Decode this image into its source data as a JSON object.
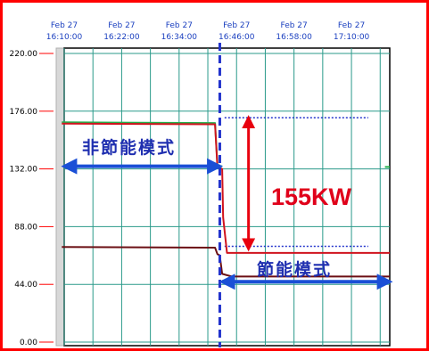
{
  "colors": {
    "frame": "#ff0000",
    "grid": "#2a9a8a",
    "plot_bg": "#ffffff",
    "axis_text_x": "#1a3fbf",
    "divider": "#2233cc",
    "green_series": "#22b14c",
    "red_series": "#d0141e",
    "brown_series": "#6b0f14",
    "ref_dotted": "#2233cc",
    "arrow_red": "#e8000e",
    "arrow_blue": "#1a4fd6",
    "text_blue": "#1f2fb0",
    "text_red": "#e0001a"
  },
  "chart_data": {
    "type": "line",
    "title": "",
    "xlabel": "",
    "ylabel": "",
    "x_unit": "minutes",
    "x_tick_values": [
      0,
      12,
      24,
      36,
      48,
      60
    ],
    "x_ticks": [
      {
        "date": "Feb 27",
        "time": "16:10:00"
      },
      {
        "date": "Feb 27",
        "time": "16:22:00"
      },
      {
        "date": "Feb 27",
        "time": "16:34:00"
      },
      {
        "date": "Feb 27",
        "time": "16:46:00"
      },
      {
        "date": "Feb 27",
        "time": "16:58:00"
      },
      {
        "date": "Feb 27",
        "time": "17:10:00"
      }
    ],
    "xlim": [
      0,
      68
    ],
    "ylim": [
      0,
      220
    ],
    "y_ticks": [
      "0.00",
      "44.00",
      "88.00",
      "132.00",
      "176.00",
      "220.00"
    ],
    "y_tick_values": [
      0,
      44,
      88,
      132,
      176,
      220
    ],
    "grid": true,
    "vertical_divider_x": 32.5,
    "series": [
      {
        "color_key": "green_series",
        "points": [
          [
            -0.5,
            167.5
          ],
          [
            31.5,
            167.0
          ],
          [
            32.0,
            134.5
          ],
          [
            33.0,
            134.0
          ]
        ]
      },
      {
        "color_key": "red_series",
        "points": [
          [
            -0.5,
            166.5
          ],
          [
            31.5,
            166.0
          ],
          [
            32.0,
            133.0
          ],
          [
            33.0,
            132.0
          ],
          [
            33.2,
            95.0
          ],
          [
            34.0,
            68.0
          ],
          [
            68.0,
            68.0
          ]
        ]
      },
      {
        "color_key": "brown_series",
        "points": [
          [
            -0.5,
            72.5
          ],
          [
            31.5,
            72.0
          ],
          [
            32.0,
            67.0
          ],
          [
            32.5,
            66.0
          ],
          [
            33.0,
            52.0
          ],
          [
            35.0,
            50.0
          ],
          [
            68.0,
            50.0
          ]
        ]
      },
      {
        "color_key": "green_series",
        "points": [
          [
            67.0,
            133.5
          ],
          [
            68.0,
            133.5
          ]
        ]
      }
    ],
    "reference_lines": [
      {
        "y": 171,
        "x_from": 33.5,
        "x_to": 63.5
      },
      {
        "y": 73,
        "x_from": 33.5,
        "x_to": 63.5
      }
    ],
    "annotations": {
      "non_saving": "非節能模式",
      "saving": "節能模式",
      "saving_amount": "155KW",
      "red_arrow": {
        "y_from": 171,
        "y_to": 71,
        "x": 38.5
      },
      "blue_arrow_left": {
        "x_from": 0,
        "x_to": 32.5,
        "y": 134
      },
      "blue_arrow_right": {
        "x_from": 33,
        "x_to": 68,
        "y": 46
      }
    }
  }
}
